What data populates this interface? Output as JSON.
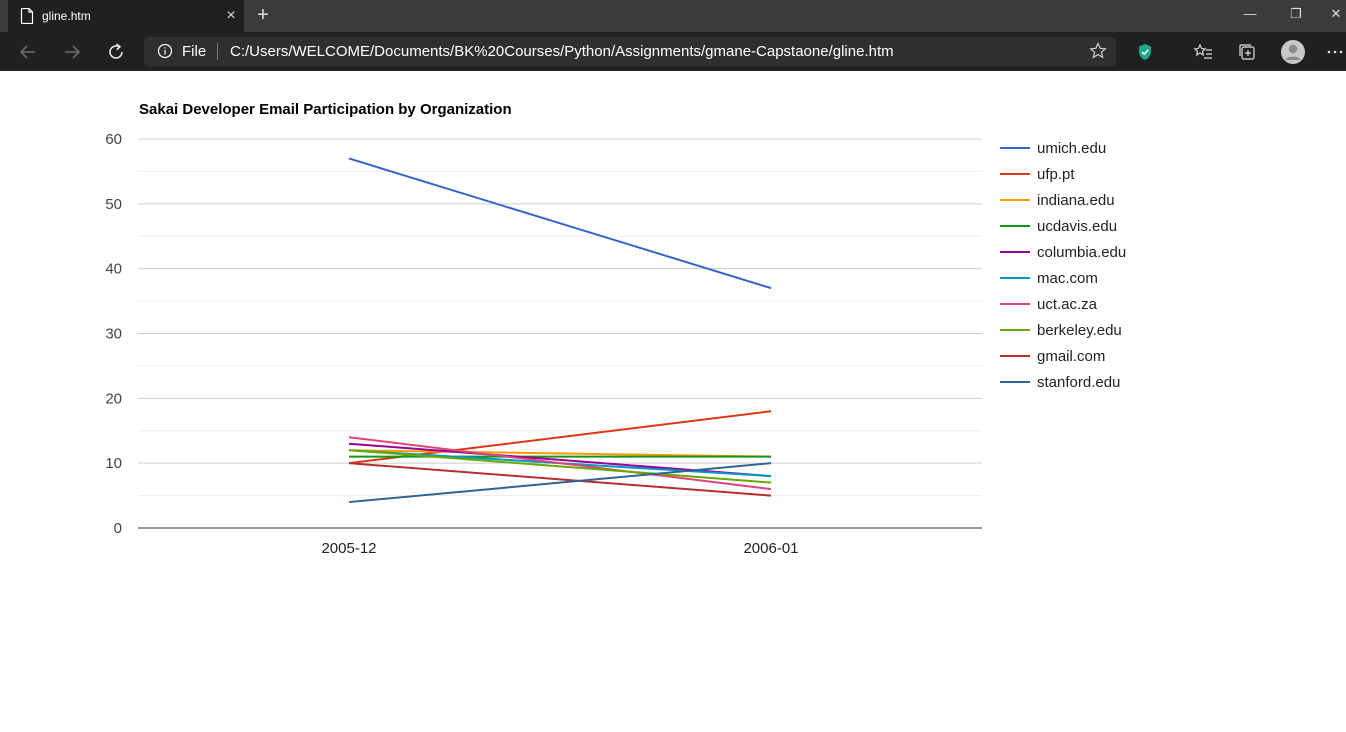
{
  "browser": {
    "tab_title": "gline.htm",
    "tab_close": "×",
    "new_tab": "+",
    "window_controls": {
      "minimize": "—",
      "restore": "❐",
      "close": "✕"
    },
    "address": {
      "scheme_label": "File",
      "url": "C:/Users/WELCOME/Documents/BK%20Courses/Python/Assignments/gmane-Capstaone/gline.htm"
    },
    "icons": [
      "page-icon",
      "back-icon",
      "forward-icon",
      "refresh-icon",
      "info-icon",
      "star-icon",
      "shield-extension-icon",
      "favorites-icon",
      "collections-icon",
      "profile-avatar-icon",
      "more-icon"
    ],
    "colors": {
      "tabbar": "#3b3b3b",
      "toolbar": "#202020",
      "address": "#2f2f2f",
      "extension_shield": "#22a68a"
    }
  },
  "chart_data": {
    "type": "line",
    "title": "Sakai Developer Email Participation by Organization",
    "categories": [
      "2005-12",
      "2006-01"
    ],
    "ylim": [
      0,
      60
    ],
    "yticks": [
      0,
      10,
      20,
      30,
      40,
      50,
      60
    ],
    "grid": true,
    "legend_position": "right",
    "series": [
      {
        "name": "umich.edu",
        "color": "#3366cc",
        "values": [
          57,
          37
        ]
      },
      {
        "name": "ufp.pt",
        "color": "#dc3912",
        "values": [
          10,
          18
        ]
      },
      {
        "name": "indiana.edu",
        "color": "#ff9900",
        "values": [
          12,
          11
        ]
      },
      {
        "name": "ucdavis.edu",
        "color": "#109618",
        "values": [
          11,
          11
        ]
      },
      {
        "name": "columbia.edu",
        "color": "#990099",
        "values": [
          13,
          8
        ]
      },
      {
        "name": "mac.com",
        "color": "#0099c6",
        "values": [
          12,
          8
        ]
      },
      {
        "name": "uct.ac.za",
        "color": "#dd4477",
        "values": [
          14,
          6
        ]
      },
      {
        "name": "berkeley.edu",
        "color": "#66aa00",
        "values": [
          12,
          7
        ]
      },
      {
        "name": "gmail.com",
        "color": "#b82e2e",
        "values": [
          10,
          5
        ]
      },
      {
        "name": "stanford.edu",
        "color": "#316395",
        "values": [
          4,
          10
        ]
      }
    ]
  }
}
